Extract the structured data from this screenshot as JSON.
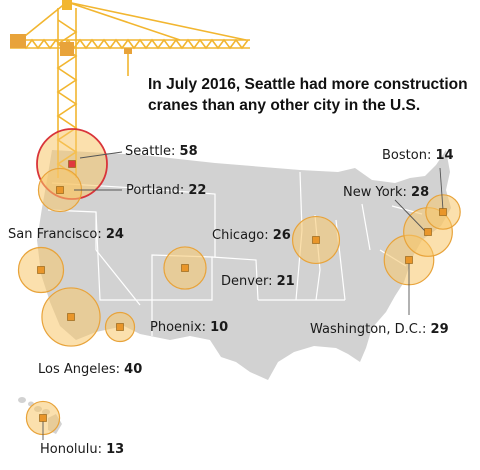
{
  "headline": "In July 2016, Seattle had more construction cranes than any other city in the U.S.",
  "colors": {
    "crane": "#f2b630",
    "bubble_fill": "#f7c76a",
    "bubble_stroke": "#e8a33a",
    "highlight_stroke": "#d9343a",
    "highlight_marker": "#e0383e",
    "marker": "#e9962a",
    "land": "#d2d2d2",
    "state_line": "#ffffff"
  },
  "cities": [
    {
      "id": "seattle",
      "name": "Seattle",
      "separator": ": ",
      "cranes": 58,
      "highlight": true
    },
    {
      "id": "portland",
      "name": "Portland",
      "separator": ": ",
      "cranes": 22
    },
    {
      "id": "san-francisco",
      "name": "San Francisco",
      "separator": ": ",
      "cranes": 24
    },
    {
      "id": "los-angeles",
      "name": "Los Angeles",
      "separator": ": ",
      "cranes": 40
    },
    {
      "id": "phoenix",
      "name": "Phoenix",
      "separator": ": ",
      "cranes": 10
    },
    {
      "id": "denver",
      "name": "Denver",
      "separator": ": ",
      "cranes": 21
    },
    {
      "id": "chicago",
      "name": "Chicago",
      "separator": ": ",
      "cranes": 26
    },
    {
      "id": "new-york",
      "name": "New York",
      "separator": ": ",
      "cranes": 28
    },
    {
      "id": "boston",
      "name": "Boston",
      "separator": ": ",
      "cranes": 14
    },
    {
      "id": "washington-dc",
      "name": "Washington, D.C.",
      "separator": ": ",
      "cranes": 29
    },
    {
      "id": "honolulu",
      "name": "Honolulu",
      "separator": ": ",
      "cranes": 13
    }
  ]
}
